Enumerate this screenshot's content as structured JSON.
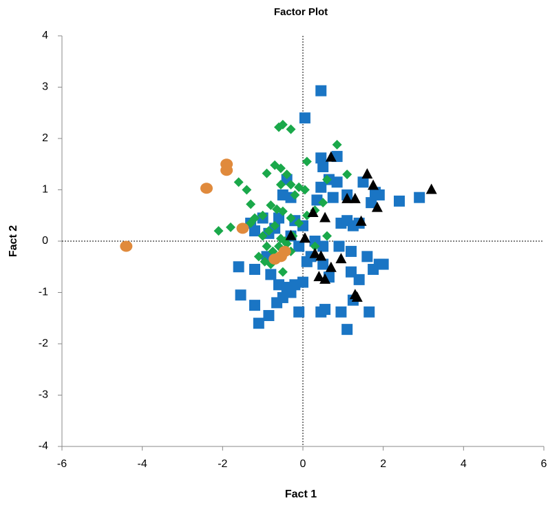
{
  "chart_data": {
    "type": "scatter",
    "title": "Factor Plot",
    "x_label": "Fact 1",
    "y_label": "Fact 2",
    "xlim": [
      -6,
      6
    ],
    "ylim": [
      -4,
      4
    ],
    "xticks": [
      -6,
      -4,
      -2,
      0,
      2,
      4,
      6
    ],
    "yticks": [
      -4,
      -3,
      -2,
      -1,
      0,
      1,
      2,
      3,
      4
    ],
    "series": [
      {
        "color": "#1a75c4",
        "marker": "square",
        "x": [
          0.45,
          0.05,
          0.45,
          0.85,
          0.5,
          0.65,
          0.45,
          0.85,
          1.5,
          1.8,
          1.9,
          1.7,
          2.4,
          2.9,
          0.35,
          1.1,
          0.75,
          -0.4,
          -0.5,
          -0.3,
          0.95,
          1.1,
          1.25,
          1.4,
          -1.3,
          -1.0,
          -0.6,
          -0.2,
          0.0,
          -1.2,
          -0.85,
          -0.3,
          0.3,
          0.5,
          0.9,
          1.2,
          -0.1,
          0.1,
          0.5,
          -1.6,
          -1.2,
          -0.8,
          -0.6,
          -0.4,
          -0.2,
          0.0,
          -1.55,
          -1.2,
          -1.1,
          -0.85,
          -0.65,
          -0.5,
          -0.3,
          -0.1,
          0.45,
          0.55,
          0.95,
          1.1,
          1.65,
          1.25,
          1.2,
          1.4,
          1.6,
          1.75,
          1.9,
          2.0,
          0.65,
          0.2,
          -0.9,
          -0.7
        ],
        "y": [
          2.93,
          2.4,
          1.62,
          1.65,
          1.45,
          1.2,
          1.05,
          1.15,
          1.15,
          0.95,
          0.9,
          0.75,
          0.78,
          0.85,
          0.8,
          0.9,
          0.85,
          1.2,
          0.9,
          0.85,
          0.35,
          0.4,
          0.3,
          0.35,
          0.35,
          0.45,
          0.45,
          0.4,
          0.3,
          0.2,
          0.15,
          0.1,
          0.0,
          -0.1,
          -0.1,
          -0.2,
          -0.1,
          -0.4,
          -0.45,
          -0.5,
          -0.55,
          -0.65,
          -0.85,
          -0.9,
          -0.85,
          -0.8,
          -1.05,
          -1.25,
          -1.6,
          -1.45,
          -1.2,
          -1.1,
          -1.0,
          -1.38,
          -1.38,
          -1.33,
          -1.38,
          -1.72,
          -1.38,
          -1.15,
          -0.6,
          -0.75,
          -0.3,
          -0.55,
          -0.45,
          -0.45,
          -0.7,
          -0.3,
          -0.3,
          0.25
        ]
      },
      {
        "color": "#1aa84a",
        "marker": "diamond",
        "x": [
          -2.1,
          -1.8,
          -1.6,
          -1.4,
          -1.3,
          -0.6,
          -0.5,
          -0.3,
          0.1,
          0.85,
          0.6,
          1.1,
          -0.9,
          -0.7,
          -0.55,
          -0.4,
          -0.55,
          -0.3,
          -0.1,
          0.05,
          -1.2,
          -1.0,
          -0.8,
          -0.65,
          -0.5,
          -0.3,
          -0.1,
          0.1,
          0.3,
          -1.0,
          -0.85,
          -0.7,
          -0.55,
          -0.4,
          -0.25,
          -0.9,
          -0.75,
          -0.6,
          -0.45,
          -0.3,
          -1.1,
          -0.8,
          -0.5,
          0.6,
          0.5,
          -0.2,
          -1.3,
          -0.95,
          0.3
        ],
        "y": [
          0.2,
          0.27,
          1.15,
          1.0,
          0.72,
          2.22,
          2.27,
          2.18,
          1.55,
          1.88,
          1.2,
          1.3,
          1.32,
          1.48,
          1.42,
          1.3,
          1.1,
          1.1,
          1.05,
          1.0,
          0.45,
          0.5,
          0.7,
          0.62,
          0.58,
          0.45,
          0.35,
          0.5,
          0.6,
          0.1,
          0.2,
          0.3,
          0.05,
          -0.05,
          0.1,
          -0.1,
          -0.2,
          -0.1,
          0.0,
          -0.2,
          -0.3,
          -0.45,
          -0.6,
          0.1,
          0.75,
          0.9,
          0.35,
          -0.4,
          -0.1
        ]
      },
      {
        "color": "#000000",
        "marker": "triangle",
        "x": [
          0.7,
          1.6,
          1.75,
          1.1,
          1.3,
          1.85,
          3.2,
          0.25,
          0.55,
          1.45,
          -0.3,
          0.05,
          0.3,
          0.45,
          0.95,
          0.7,
          0.4,
          0.55,
          1.3,
          1.35
        ],
        "y": [
          1.63,
          1.3,
          1.08,
          0.82,
          0.82,
          0.65,
          1.0,
          0.55,
          0.45,
          0.38,
          0.1,
          0.05,
          -0.25,
          -0.3,
          -0.35,
          -0.52,
          -0.7,
          -0.75,
          -1.05,
          -1.1
        ]
      },
      {
        "color": "#e08a3c",
        "marker": "circle",
        "x": [
          -4.4,
          -2.4,
          -1.9,
          -1.9,
          -1.5,
          -0.7,
          -0.55,
          -0.45
        ],
        "y": [
          -0.1,
          1.03,
          1.38,
          1.5,
          0.25,
          -0.35,
          -0.3,
          -0.2
        ]
      }
    ]
  }
}
